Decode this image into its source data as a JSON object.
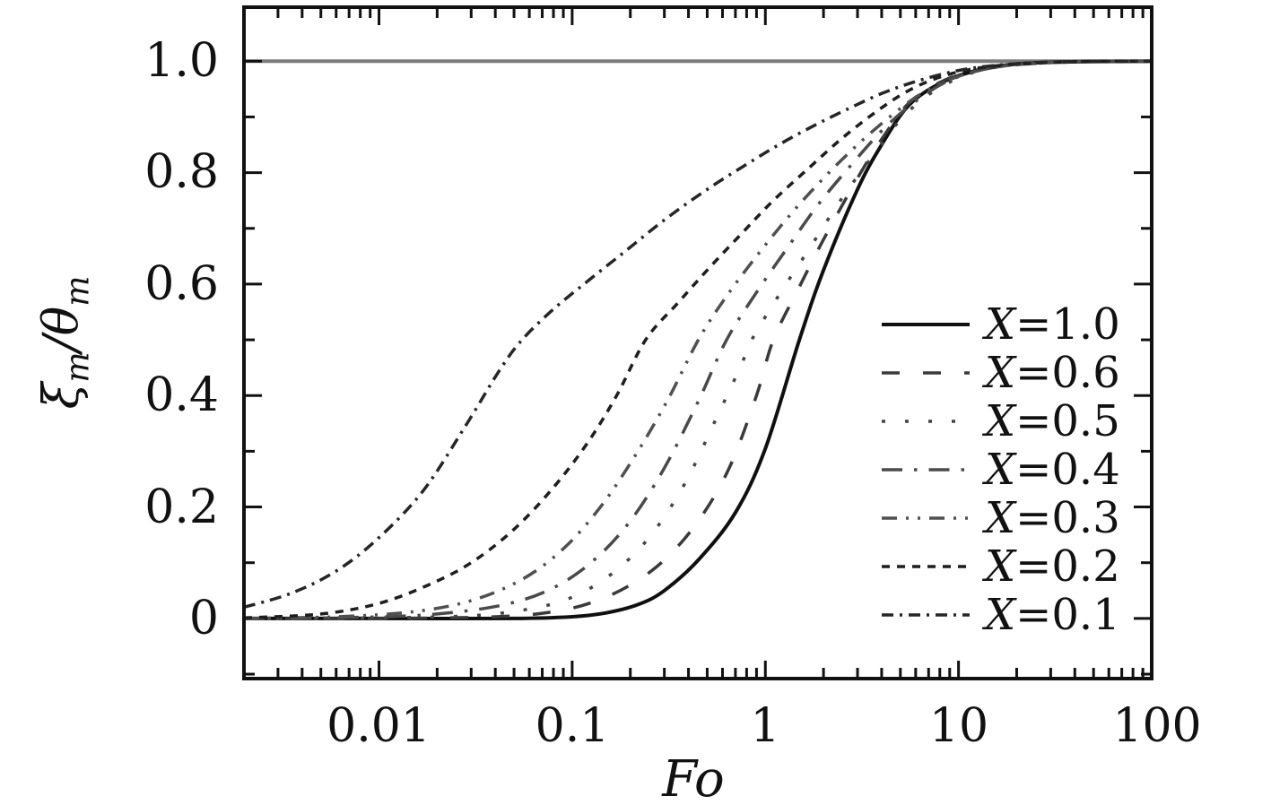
{
  "colors": {
    "frame": "#111111",
    "text": "#111111",
    "background": "#ffffff"
  },
  "reference_line": {
    "y": 1.0,
    "color": "#7c7c7c"
  },
  "axes": {
    "x": {
      "label": "Fo",
      "scale": "log",
      "min": 0.002,
      "max": 100,
      "tick_labels": [
        {
          "value": 0.01,
          "label": "0.01"
        },
        {
          "value": 0.1,
          "label": "0.1"
        },
        {
          "value": 1,
          "label": "1"
        },
        {
          "value": 10,
          "label": "10"
        },
        {
          "value": 100,
          "label": "100"
        }
      ]
    },
    "y": {
      "label": "ξm/θm",
      "label_xi": "ξ",
      "label_sub1": "m",
      "label_slash": "/",
      "label_theta": "θ",
      "label_sub2": "m",
      "min": -0.108,
      "max": 1.097,
      "tick_labels": [
        {
          "value": 1.0,
          "label": "1.0"
        },
        {
          "value": 0.8,
          "label": "0.8"
        },
        {
          "value": 0.6,
          "label": "0.6"
        },
        {
          "value": 0.4,
          "label": "0.4"
        },
        {
          "value": 0.2,
          "label": "0.2"
        },
        {
          "value": 0.0,
          "label": "0"
        }
      ],
      "minor_ticks": [
        -0.1,
        0.1,
        0.3,
        0.5,
        0.7,
        0.9
      ]
    }
  },
  "legend": {
    "position": "lower right",
    "items": [
      {
        "x": "X",
        "rest": "=1.0"
      },
      {
        "x": "X",
        "rest": "=0.6"
      },
      {
        "x": "X",
        "rest": "=0.5"
      },
      {
        "x": "X",
        "rest": "=0.4"
      },
      {
        "x": "X",
        "rest": "=0.3"
      },
      {
        "x": "X",
        "rest": "=0.2"
      },
      {
        "x": "X",
        "rest": "=0.1"
      }
    ]
  },
  "chart_data": {
    "type": "line",
    "title": "",
    "xlabel": "Fo",
    "ylabel": "ξm/θm",
    "x_scale": "log",
    "xlim": [
      0.002,
      100
    ],
    "ylim": [
      -0.108,
      1.097
    ],
    "grid": false,
    "legend_position": "lower right",
    "reference_line_y": 1.0,
    "series": [
      {
        "name": "X=1.0",
        "X": 1.0,
        "style": "solid",
        "color": "#101010",
        "width": 4,
        "dash": [],
        "points": [
          [
            0.002,
            0
          ],
          [
            0.01,
            0
          ],
          [
            0.05,
            0
          ],
          [
            0.1,
            0.003
          ],
          [
            0.15,
            0.01
          ],
          [
            0.22,
            0.025
          ],
          [
            0.3,
            0.05
          ],
          [
            0.45,
            0.105
          ],
          [
            0.7,
            0.19
          ],
          [
            1.0,
            0.305
          ],
          [
            1.5,
            0.5
          ],
          [
            2,
            0.625
          ],
          [
            3,
            0.77
          ],
          [
            4,
            0.85
          ],
          [
            5.5,
            0.92
          ],
          [
            8,
            0.96
          ],
          [
            12,
            0.982
          ],
          [
            20,
            0.995
          ],
          [
            40,
            0.999
          ],
          [
            100,
            1
          ]
        ]
      },
      {
        "name": "X=0.6",
        "X": 0.6,
        "style": "long-dash",
        "color": "#3a3a3a",
        "width": 3.5,
        "dash": [
          20,
          26
        ],
        "points": [
          [
            0.002,
            0
          ],
          [
            0.01,
            0
          ],
          [
            0.04,
            0.003
          ],
          [
            0.08,
            0.012
          ],
          [
            0.13,
            0.03
          ],
          [
            0.2,
            0.06
          ],
          [
            0.3,
            0.105
          ],
          [
            0.45,
            0.175
          ],
          [
            0.65,
            0.27
          ],
          [
            0.9,
            0.4
          ],
          [
            1.1,
            0.5
          ],
          [
            1.5,
            0.595
          ],
          [
            2,
            0.68
          ],
          [
            3,
            0.79
          ],
          [
            4,
            0.86
          ],
          [
            5.5,
            0.924
          ],
          [
            8,
            0.962
          ],
          [
            12,
            0.983
          ],
          [
            20,
            0.995
          ],
          [
            40,
            0.999
          ],
          [
            100,
            1
          ]
        ]
      },
      {
        "name": "X=0.5",
        "X": 0.5,
        "style": "dotted",
        "color": "#444444",
        "width": 3.5,
        "dash": [
          4,
          22
        ],
        "points": [
          [
            0.002,
            0
          ],
          [
            0.01,
            0.001
          ],
          [
            0.03,
            0.005
          ],
          [
            0.06,
            0.017
          ],
          [
            0.1,
            0.038
          ],
          [
            0.16,
            0.08
          ],
          [
            0.25,
            0.145
          ],
          [
            0.38,
            0.24
          ],
          [
            0.55,
            0.355
          ],
          [
            0.75,
            0.455
          ],
          [
            0.85,
            0.5
          ],
          [
            1.2,
            0.585
          ],
          [
            1.7,
            0.665
          ],
          [
            2.5,
            0.755
          ],
          [
            3.6,
            0.83
          ],
          [
            5,
            0.895
          ],
          [
            7,
            0.94
          ],
          [
            10,
            0.97
          ],
          [
            14,
            0.986
          ],
          [
            22,
            0.995
          ],
          [
            45,
            0.999
          ],
          [
            100,
            1
          ]
        ]
      },
      {
        "name": "X=0.4",
        "X": 0.4,
        "style": "dash-dot",
        "color": "#4a4a4a",
        "width": 3.5,
        "dash": [
          23,
          13,
          3.5,
          13
        ],
        "points": [
          [
            0.002,
            0
          ],
          [
            0.008,
            0.002
          ],
          [
            0.02,
            0.008
          ],
          [
            0.045,
            0.025
          ],
          [
            0.08,
            0.055
          ],
          [
            0.13,
            0.105
          ],
          [
            0.2,
            0.175
          ],
          [
            0.3,
            0.27
          ],
          [
            0.45,
            0.39
          ],
          [
            0.63,
            0.5
          ],
          [
            0.9,
            0.585
          ],
          [
            1.3,
            0.665
          ],
          [
            1.9,
            0.745
          ],
          [
            2.8,
            0.815
          ],
          [
            4,
            0.875
          ],
          [
            5.6,
            0.92
          ],
          [
            8,
            0.957
          ],
          [
            11,
            0.977
          ],
          [
            16,
            0.99
          ],
          [
            28,
            0.997
          ],
          [
            55,
            1
          ],
          [
            100,
            1
          ]
        ]
      },
      {
        "name": "X=0.3",
        "X": 0.3,
        "style": "dash-dot-dot",
        "color": "#505050",
        "width": 3.5,
        "dash": [
          17,
          10,
          3,
          10,
          3,
          10
        ],
        "points": [
          [
            0.002,
            0
          ],
          [
            0.006,
            0.003
          ],
          [
            0.015,
            0.012
          ],
          [
            0.03,
            0.032
          ],
          [
            0.055,
            0.07
          ],
          [
            0.09,
            0.125
          ],
          [
            0.14,
            0.2
          ],
          [
            0.21,
            0.29
          ],
          [
            0.31,
            0.39
          ],
          [
            0.45,
            0.5
          ],
          [
            0.62,
            0.575
          ],
          [
            0.9,
            0.65
          ],
          [
            1.35,
            0.725
          ],
          [
            2,
            0.79
          ],
          [
            3,
            0.85
          ],
          [
            4.4,
            0.9
          ],
          [
            6.3,
            0.94
          ],
          [
            9,
            0.967
          ],
          [
            13,
            0.984
          ],
          [
            20,
            0.994
          ],
          [
            38,
            0.999
          ],
          [
            100,
            1
          ]
        ]
      },
      {
        "name": "X=0.2",
        "X": 0.2,
        "style": "short-dash",
        "color": "#1e1e1e",
        "width": 3.5,
        "dash": [
          9,
          8
        ],
        "points": [
          [
            0.002,
            0.001
          ],
          [
            0.005,
            0.008
          ],
          [
            0.01,
            0.027
          ],
          [
            0.018,
            0.06
          ],
          [
            0.03,
            0.1
          ],
          [
            0.05,
            0.16
          ],
          [
            0.08,
            0.235
          ],
          [
            0.12,
            0.315
          ],
          [
            0.17,
            0.4
          ],
          [
            0.24,
            0.5
          ],
          [
            0.35,
            0.565
          ],
          [
            0.5,
            0.625
          ],
          [
            0.75,
            0.69
          ],
          [
            1.1,
            0.75
          ],
          [
            1.7,
            0.81
          ],
          [
            2.5,
            0.862
          ],
          [
            3.7,
            0.908
          ],
          [
            5.3,
            0.944
          ],
          [
            7.5,
            0.968
          ],
          [
            11,
            0.984
          ],
          [
            17,
            0.993
          ],
          [
            30,
            0.998
          ],
          [
            60,
            1
          ],
          [
            100,
            1
          ]
        ]
      },
      {
        "name": "X=0.1",
        "X": 0.1,
        "style": "dash-dot-short",
        "color": "#262626",
        "width": 3.5,
        "dash": [
          13,
          7,
          3,
          7
        ],
        "points": [
          [
            0.002,
            0.02
          ],
          [
            0.0035,
            0.045
          ],
          [
            0.006,
            0.085
          ],
          [
            0.01,
            0.145
          ],
          [
            0.017,
            0.23
          ],
          [
            0.028,
            0.345
          ],
          [
            0.042,
            0.445
          ],
          [
            0.055,
            0.5
          ],
          [
            0.08,
            0.555
          ],
          [
            0.12,
            0.605
          ],
          [
            0.19,
            0.66
          ],
          [
            0.3,
            0.715
          ],
          [
            0.5,
            0.77
          ],
          [
            0.8,
            0.815
          ],
          [
            1.2,
            0.852
          ],
          [
            1.8,
            0.885
          ],
          [
            2.7,
            0.915
          ],
          [
            4,
            0.942
          ],
          [
            5.8,
            0.962
          ],
          [
            8.5,
            0.978
          ],
          [
            12,
            0.988
          ],
          [
            19,
            0.995
          ],
          [
            35,
            0.999
          ],
          [
            100,
            1
          ]
        ]
      }
    ]
  }
}
